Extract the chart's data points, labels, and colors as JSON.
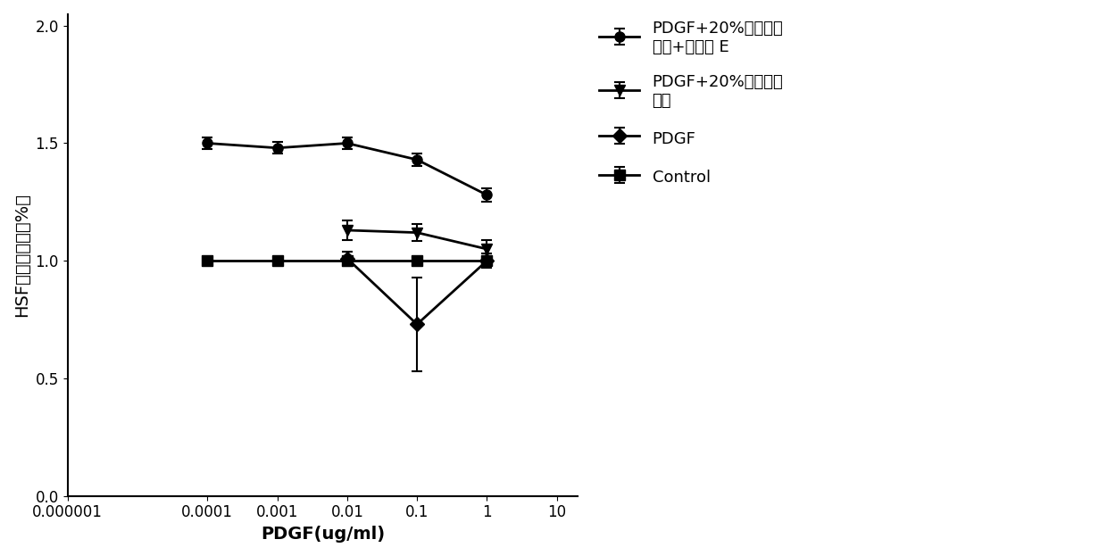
{
  "x_values": [
    0.0001,
    0.001,
    0.01,
    0.1,
    1.0
  ],
  "series": [
    {
      "label": "PDGF+20%干细胞浓\n缩液+维生素 E",
      "y": [
        1.5,
        1.48,
        1.5,
        1.43,
        1.28
      ],
      "yerr": [
        0.025,
        0.025,
        0.025,
        0.025,
        0.03
      ],
      "marker": "o",
      "color": "#000000",
      "linewidth": 2.0,
      "markersize": 8
    },
    {
      "label": "PDGF+20%干细胞浓\n缩液",
      "y": [
        null,
        null,
        1.13,
        1.12,
        1.05
      ],
      "yerr": [
        null,
        null,
        0.04,
        0.035,
        0.04
      ],
      "marker": "v",
      "color": "#000000",
      "linewidth": 2.0,
      "markersize": 8
    },
    {
      "label": "PDGF",
      "y": [
        null,
        null,
        1.01,
        0.73,
        1.0
      ],
      "yerr": [
        null,
        null,
        0.03,
        0.2,
        0.03
      ],
      "marker": "D",
      "color": "#000000",
      "linewidth": 2.0,
      "markersize": 8
    },
    {
      "label": "Control",
      "y": [
        1.0,
        1.0,
        1.0,
        1.0,
        1.0
      ],
      "yerr": [
        0.015,
        0.015,
        0.015,
        0.015,
        0.015
      ],
      "marker": "s",
      "color": "#000000",
      "linewidth": 2.0,
      "markersize": 8
    }
  ],
  "xlabel": "PDGF(ug/ml)",
  "ylabel": "HSF细胞存活率（%）",
  "xlim_log_min": -6,
  "xlim_log_max": 1.3,
  "ylim": [
    0.0,
    2.05
  ],
  "yticks": [
    0.0,
    0.5,
    1.0,
    1.5,
    2.0
  ],
  "xtick_values": [
    1e-06,
    0.0001,
    0.001,
    0.01,
    0.1,
    1.0,
    10.0
  ],
  "xtick_labels": [
    "0.000001",
    "0.0001",
    "0.001",
    "0.01",
    "0.1",
    "1",
    "10"
  ],
  "background_color": "#ffffff",
  "axis_fontsize": 14,
  "legend_fontsize": 13,
  "tick_fontsize": 12
}
